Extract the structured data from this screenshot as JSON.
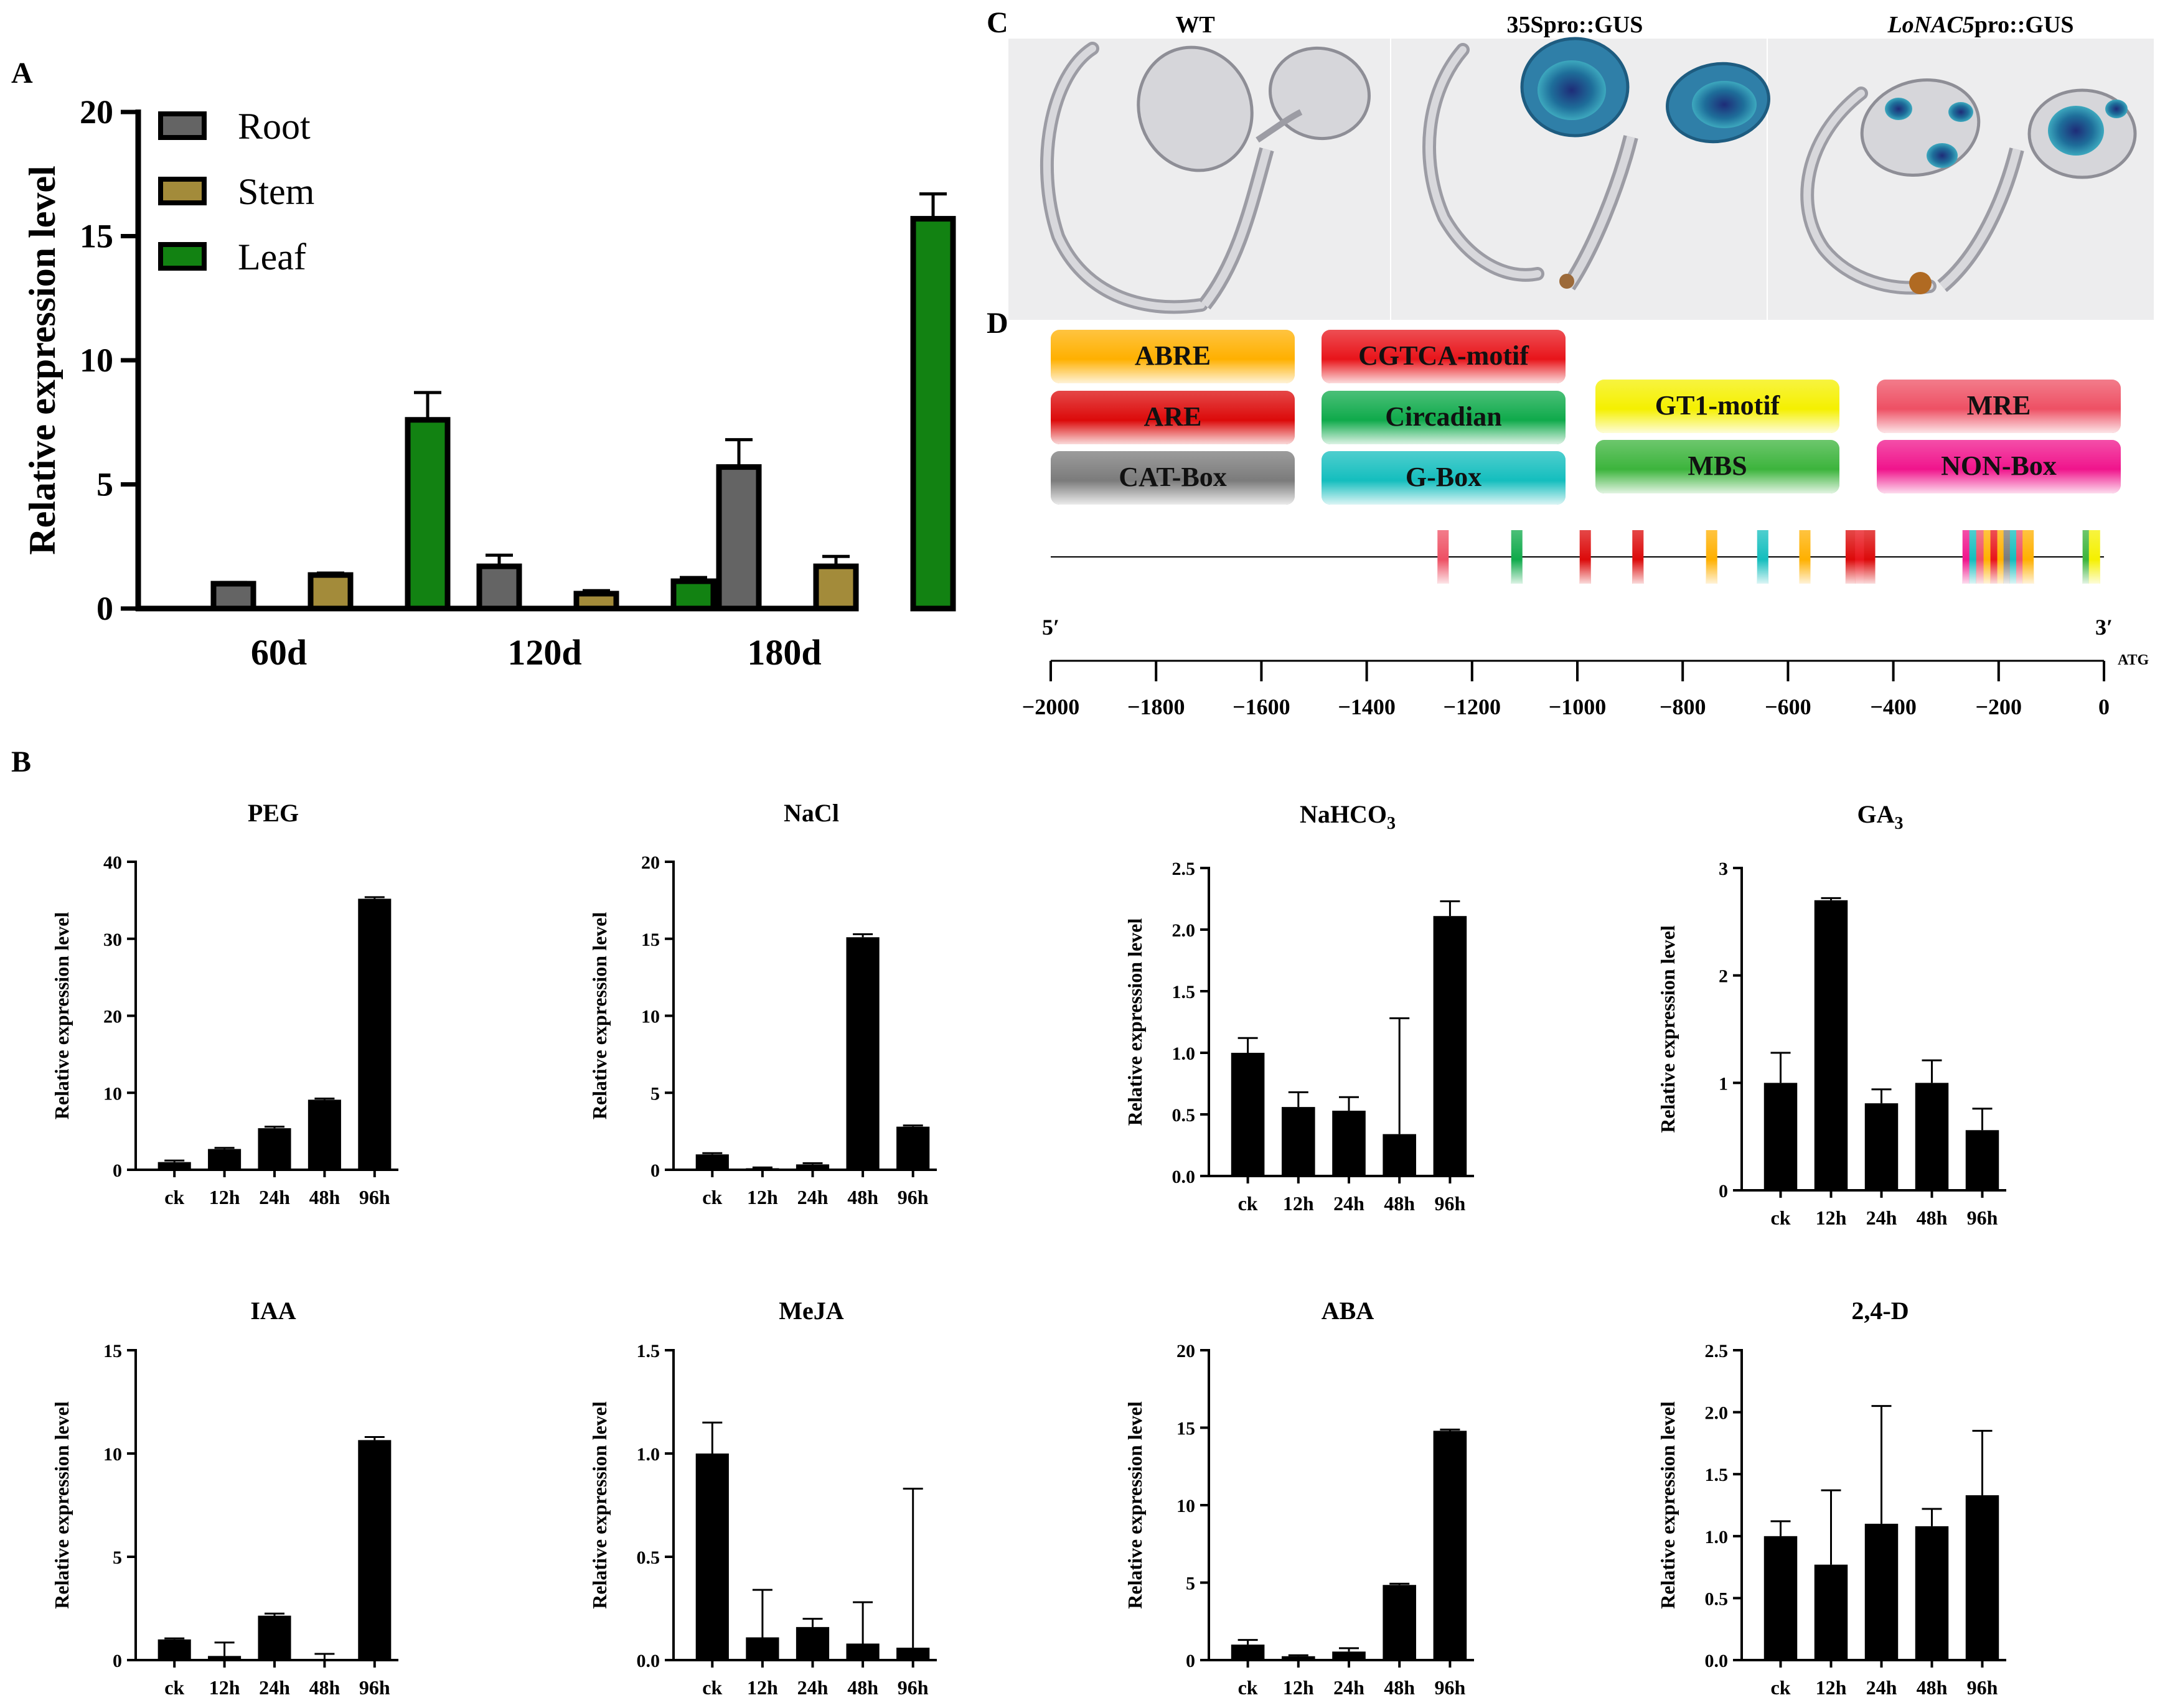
{
  "panel_letters": {
    "a": "A",
    "b": "B",
    "c": "C",
    "d": "D"
  },
  "panel_c": {
    "labels": {
      "wt": "WT",
      "s35_promoter": "35Spro::GUS",
      "lonac5_gene": "LoNAC5",
      "lonac5_suffix": "pro::GUS"
    }
  },
  "panel_d": {
    "legend": [
      {
        "name": "ABRE",
        "color": "#FFB000"
      },
      {
        "name": "CGTCA-motif",
        "color": "#E8141A"
      },
      {
        "name": "ARE",
        "color": "#DC0A0A"
      },
      {
        "name": "Circadian",
        "color": "#0FAA4B"
      },
      {
        "name": "GT1-motif",
        "color": "#F5F000"
      },
      {
        "name": "MRE",
        "color": "#EE5064"
      },
      {
        "name": "CAT-Box",
        "color": "#7B7B7B"
      },
      {
        "name": "G-Box",
        "color": "#14BEBE"
      },
      {
        "name": "MBS",
        "color": "#3CB43C"
      },
      {
        "name": "NON-Box",
        "color": "#F0148C"
      }
    ],
    "elements": [
      {
        "position": -1255,
        "type": "MRE"
      },
      {
        "position": -1115,
        "type": "Circadian"
      },
      {
        "position": -985,
        "type": "ARE"
      },
      {
        "position": -885,
        "type": "ARE"
      },
      {
        "position": -745,
        "type": "ABRE"
      },
      {
        "position": -648,
        "type": "G-Box"
      },
      {
        "position": -568,
        "type": "ABRE"
      },
      {
        "position": -480,
        "type": "ARE"
      },
      {
        "position": -462,
        "type": "CGTCA-motif"
      },
      {
        "position": -445,
        "type": "ARE"
      },
      {
        "position": -258,
        "type": "NON-Box"
      },
      {
        "position": -245,
        "type": "G-Box"
      },
      {
        "position": -232,
        "type": "MRE"
      },
      {
        "position": -218,
        "type": "ABRE"
      },
      {
        "position": -205,
        "type": "CGTCA-motif"
      },
      {
        "position": -192,
        "type": "ABRE"
      },
      {
        "position": -180,
        "type": "CAT-Box"
      },
      {
        "position": -168,
        "type": "G-Box"
      },
      {
        "position": -156,
        "type": "MRE"
      },
      {
        "position": -144,
        "type": "ABRE"
      },
      {
        "position": -30,
        "type": "MBS"
      },
      {
        "position": -18,
        "type": "GT1-motif"
      }
    ],
    "five_prime": "5′",
    "three_prime": "3′",
    "atg": "ATG",
    "axis_ticks": [
      "−2000",
      "−1800",
      "−1600",
      "−1400",
      "−1200",
      "−1000",
      "−800",
      "−600",
      "−400",
      "−200",
      "0"
    ],
    "axis_values": [
      -2000,
      -1800,
      -1600,
      -1400,
      -1200,
      -1000,
      -800,
      -600,
      -400,
      -200,
      0
    ]
  },
  "chart_data": [
    {
      "id": "A",
      "type": "bar",
      "title": "",
      "xlabel": "",
      "ylabel": "Relative expression level",
      "categories": [
        "60d",
        "120d",
        "180d"
      ],
      "series": [
        {
          "name": "Root",
          "color": "#646464",
          "values": [
            1.0,
            1.7,
            5.7
          ],
          "errors": [
            0.05,
            0.45,
            1.1
          ]
        },
        {
          "name": "Stem",
          "color": "#A38B3A",
          "values": [
            1.35,
            0.6,
            1.7
          ],
          "errors": [
            0.08,
            0.12,
            0.4
          ]
        },
        {
          "name": "Leaf",
          "color": "#128212",
          "values": [
            7.6,
            1.1,
            15.7
          ],
          "errors": [
            1.1,
            0.15,
            1.0
          ]
        }
      ],
      "ylim": [
        0,
        20
      ],
      "yticks": [
        0,
        5,
        10,
        15,
        20
      ]
    },
    {
      "id": "PEG",
      "type": "bar",
      "title": "PEG",
      "ylabel": "Relative expression level",
      "categories": [
        "ck",
        "12h",
        "24h",
        "48h",
        "96h"
      ],
      "values": [
        1.0,
        2.7,
        5.4,
        9.1,
        35.2
      ],
      "errors": [
        0.2,
        0.15,
        0.2,
        0.15,
        0.2
      ],
      "ylim": [
        0,
        40
      ],
      "yticks": [
        0,
        10,
        20,
        30,
        40
      ]
    },
    {
      "id": "NaCl",
      "type": "bar",
      "title": "NaCl",
      "ylabel": "Relative expression level",
      "categories": [
        "ck",
        "12h",
        "24h",
        "48h",
        "96h"
      ],
      "values": [
        1.0,
        0.1,
        0.35,
        15.1,
        2.8
      ],
      "errors": [
        0.08,
        0.05,
        0.08,
        0.2,
        0.08
      ],
      "ylim": [
        0,
        20
      ],
      "yticks": [
        0,
        5,
        10,
        15,
        20
      ]
    },
    {
      "id": "NaHCO3",
      "type": "bar",
      "title": "NaHCO",
      "title_sub": "3",
      "ylabel": "Relative expression level",
      "categories": [
        "ck",
        "12h",
        "24h",
        "48h",
        "96h"
      ],
      "values": [
        1.0,
        0.56,
        0.53,
        0.34,
        2.11
      ],
      "errors": [
        0.12,
        0.12,
        0.11,
        0.94,
        0.12
      ],
      "ylim": [
        0,
        2.5
      ],
      "yticks": [
        0.0,
        0.5,
        1.0,
        1.5,
        2.0,
        2.5
      ]
    },
    {
      "id": "GA3",
      "type": "bar",
      "title": "GA",
      "title_sub": "3",
      "ylabel": "Relative expression level",
      "categories": [
        "ck",
        "12h",
        "24h",
        "48h",
        "96h"
      ],
      "values": [
        1.0,
        2.7,
        0.81,
        1.0,
        0.56
      ],
      "errors": [
        0.28,
        0.02,
        0.13,
        0.21,
        0.2
      ],
      "ylim": [
        0,
        3
      ],
      "yticks": [
        0,
        1,
        2,
        3
      ]
    },
    {
      "id": "IAA",
      "type": "bar",
      "title": "IAA",
      "ylabel": "Relative expression level",
      "categories": [
        "ck",
        "12h",
        "24h",
        "48h",
        "96h"
      ],
      "values": [
        1.0,
        0.2,
        2.15,
        0.05,
        10.65
      ],
      "errors": [
        0.05,
        0.65,
        0.1,
        0.25,
        0.15
      ],
      "ylim": [
        0,
        15
      ],
      "yticks": [
        0,
        5,
        10,
        15
      ]
    },
    {
      "id": "MeJA",
      "type": "bar",
      "title": "MeJA",
      "ylabel": "Relative expression level",
      "categories": [
        "ck",
        "12h",
        "24h",
        "48h",
        "96h"
      ],
      "values": [
        1.0,
        0.11,
        0.16,
        0.08,
        0.06
      ],
      "errors": [
        0.15,
        0.23,
        0.04,
        0.2,
        0.77
      ],
      "ylim": [
        0,
        1.5
      ],
      "yticks": [
        0.0,
        0.5,
        1.0,
        1.5
      ]
    },
    {
      "id": "ABA",
      "type": "bar",
      "title": "ABA",
      "ylabel": "Relative expression level",
      "categories": [
        "ck",
        "12h",
        "24h",
        "48h",
        "96h"
      ],
      "values": [
        1.0,
        0.25,
        0.55,
        4.85,
        14.8
      ],
      "errors": [
        0.3,
        0.06,
        0.22,
        0.08,
        0.08
      ],
      "ylim": [
        0,
        20
      ],
      "yticks": [
        0,
        5,
        10,
        15,
        20
      ]
    },
    {
      "id": "2,4-D",
      "type": "bar",
      "title": "2,4-D",
      "ylabel": "Relative expression level",
      "categories": [
        "ck",
        "12h",
        "24h",
        "48h",
        "96h"
      ],
      "values": [
        1.0,
        0.77,
        1.1,
        1.08,
        1.33
      ],
      "errors": [
        0.12,
        0.6,
        0.95,
        0.14,
        0.52
      ],
      "ylim": [
        0,
        2.5
      ],
      "yticks": [
        0.0,
        0.5,
        1.0,
        1.5,
        2.0,
        2.5
      ]
    }
  ]
}
